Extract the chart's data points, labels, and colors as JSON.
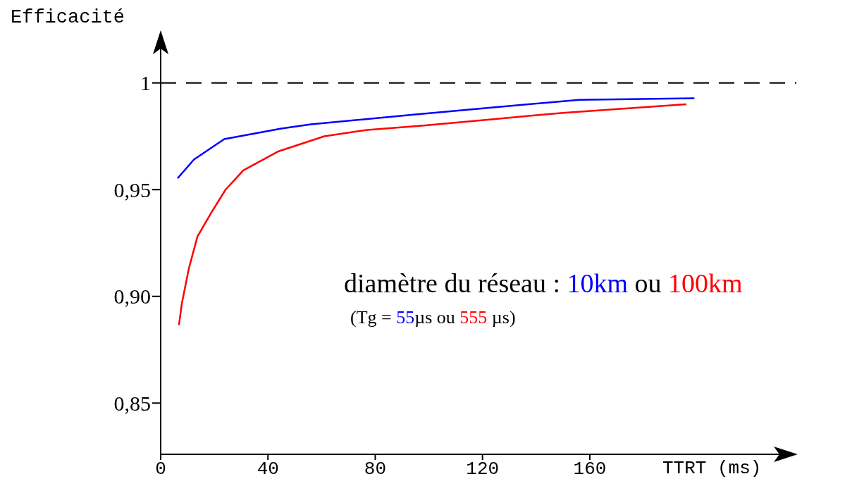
{
  "chart_data": {
    "type": "line",
    "ylabel": "Efficacité",
    "xlabel": "TTRT (ms)",
    "xlim": [
      0,
      237
    ],
    "xticks": [
      0,
      40,
      80,
      120,
      160
    ],
    "ylim": [
      0.826,
      1.024
    ],
    "yticks": [
      {
        "value": 0.85,
        "label": "0,85"
      },
      {
        "value": 0.9,
        "label": "0,90"
      },
      {
        "value": 0.95,
        "label": "0,95"
      },
      {
        "value": 1,
        "label": "1"
      }
    ],
    "grid": false,
    "marker": "none",
    "line_style": "solid",
    "ref_lines": [
      {
        "axis": "y",
        "value": 1,
        "line_style": "dashed",
        "color": "#000000"
      }
    ],
    "annotations": [
      "diamètre du réseau :",
      "10km",
      "ou",
      "100km",
      "(Tg =",
      "55",
      "µs ou",
      "555",
      "µs)"
    ],
    "series": [
      {
        "color": "#0000ff",
        "x": [
          6.3,
          12.4,
          23.7,
          45,
          56,
          95,
          124,
          156,
          199
        ],
        "values": [
          0.9553,
          0.9641,
          0.9737,
          0.9786,
          0.9806,
          0.9852,
          0.9885,
          0.9921,
          0.9928
        ]
      },
      {
        "color": "#ff0000",
        "x": [
          6.8,
          7.9,
          10.5,
          13.7,
          19,
          24.2,
          30.8,
          44,
          61,
          77,
          98,
          124,
          150,
          196
        ],
        "values": [
          0.8865,
          0.8967,
          0.913,
          0.928,
          0.9395,
          0.95,
          0.959,
          0.968,
          0.975,
          0.978,
          0.98,
          0.983,
          0.986,
          0.99
        ]
      }
    ]
  }
}
